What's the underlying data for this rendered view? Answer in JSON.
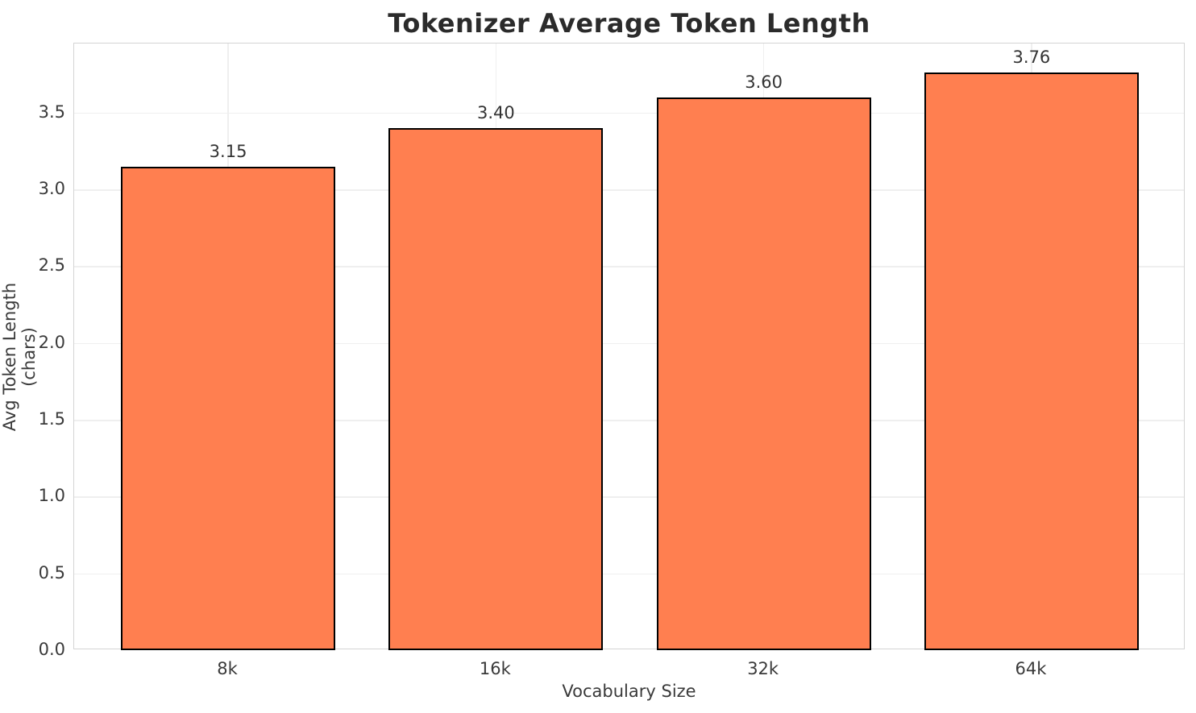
{
  "chart_data": {
    "type": "bar",
    "title": "Tokenizer Average Token Length",
    "xlabel": "Vocabulary Size",
    "ylabel": "Avg Token Length (chars)",
    "categories": [
      "8k",
      "16k",
      "32k",
      "64k"
    ],
    "values": [
      3.15,
      3.4,
      3.6,
      3.76
    ],
    "value_labels": [
      "3.15",
      "3.40",
      "3.60",
      "3.76"
    ],
    "yticks": [
      0.0,
      0.5,
      1.0,
      1.5,
      2.0,
      2.5,
      3.0,
      3.5
    ],
    "ytick_labels": [
      "0.0",
      "0.5",
      "1.0",
      "1.5",
      "2.0",
      "2.5",
      "3.0",
      "3.5"
    ],
    "ylim": [
      0,
      3.95
    ],
    "xlim": [
      -0.575,
      3.575
    ],
    "bar_width": 0.8,
    "bar_color": "#FF7F50",
    "bar_edge_color": "#000000",
    "grid": true,
    "grid_color": "#efefef",
    "legend_position": "none"
  }
}
